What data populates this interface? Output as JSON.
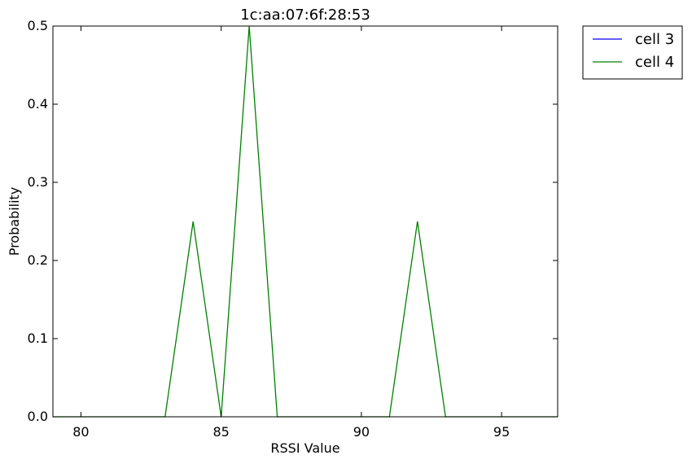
{
  "chart_data": {
    "type": "line",
    "title": "1c:aa:07:6f:28:53",
    "xlabel": "RSSI Value",
    "ylabel": "Probability",
    "xlim": [
      79,
      97
    ],
    "ylim": [
      0,
      0.5
    ],
    "xticks": [
      "80",
      "85",
      "90",
      "95"
    ],
    "xtick_values": [
      80,
      85,
      90,
      95
    ],
    "yticks": [
      "0.0",
      "0.1",
      "0.2",
      "0.3",
      "0.4",
      "0.5"
    ],
    "ytick_values": [
      0,
      0.1,
      0.2,
      0.3,
      0.4,
      0.5
    ],
    "grid": false,
    "legend_position": "outside-top-right",
    "series": [
      {
        "name": "cell 3",
        "color": "#0000ff",
        "x": [],
        "y": []
      },
      {
        "name": "cell 4",
        "color": "#008000",
        "x": [
          79,
          80,
          81,
          82,
          83,
          84,
          85,
          86,
          87,
          88,
          89,
          90,
          91,
          92,
          93,
          94,
          95,
          96,
          97
        ],
        "y": [
          0,
          0,
          0,
          0,
          0,
          0.25,
          0,
          0.5,
          0,
          0,
          0,
          0,
          0,
          0.25,
          0,
          0,
          0,
          0,
          0
        ]
      }
    ]
  }
}
